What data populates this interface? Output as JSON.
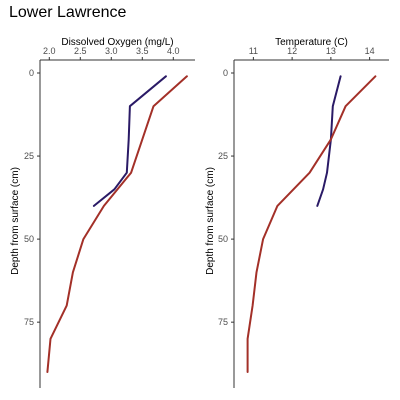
{
  "title": "Lower Lawrence",
  "colors": {
    "series_a": "#2a1a66",
    "series_b": "#a33028",
    "axis": "#333333",
    "tick_label": "#4d4d4d"
  },
  "chart_data": [
    {
      "type": "line",
      "xlabel": "Dissolved Oxygen (mg/L)",
      "ylabel": "Depth from surface (cm)",
      "xlim": [
        1.85,
        4.35
      ],
      "ylim": [
        0,
        93
      ],
      "y_reversed": true,
      "x_axis_position": "top",
      "xticks": [
        2.0,
        2.5,
        3.0,
        3.5,
        4.0
      ],
      "xtick_labels": [
        "2.0",
        "2.5",
        "3.0",
        "3.5",
        "4.0"
      ],
      "yticks": [
        0,
        25,
        50,
        75
      ],
      "ytick_labels": [
        "0",
        "25",
        "50",
        "75"
      ],
      "grid": false,
      "series": [
        {
          "color": "#2a1a66",
          "points": [
            [
              3.88,
              1
            ],
            [
              3.3,
              10
            ],
            [
              3.28,
              20
            ],
            [
              3.25,
              30
            ],
            [
              3.05,
              35
            ],
            [
              2.72,
              40
            ]
          ]
        },
        {
          "color": "#a33028",
          "points": [
            [
              4.22,
              1
            ],
            [
              3.68,
              10
            ],
            [
              3.5,
              20
            ],
            [
              3.32,
              30
            ],
            [
              2.88,
              40
            ],
            [
              2.55,
              50
            ],
            [
              2.38,
              60
            ],
            [
              2.28,
              70
            ],
            [
              2.02,
              80
            ],
            [
              1.97,
              90
            ]
          ]
        }
      ]
    },
    {
      "type": "line",
      "xlabel": "Temperature (C)",
      "ylabel": "Depth from surface (cm)",
      "xlim": [
        10.5,
        14.5
      ],
      "ylim": [
        0,
        93
      ],
      "y_reversed": true,
      "x_axis_position": "top",
      "xticks": [
        11,
        12,
        13,
        14
      ],
      "xtick_labels": [
        "11",
        "12",
        "13",
        "14"
      ],
      "yticks": [
        0,
        25,
        50,
        75
      ],
      "ytick_labels": [
        "0",
        "25",
        "50",
        "75"
      ],
      "grid": false,
      "series": [
        {
          "color": "#2a1a66",
          "points": [
            [
              13.25,
              1
            ],
            [
              13.05,
              10
            ],
            [
              13.0,
              20
            ],
            [
              12.9,
              30
            ],
            [
              12.8,
              35
            ],
            [
              12.65,
              40
            ]
          ]
        },
        {
          "color": "#a33028",
          "points": [
            [
              14.15,
              1
            ],
            [
              13.38,
              10
            ],
            [
              13.0,
              20
            ],
            [
              12.45,
              30
            ],
            [
              11.62,
              40
            ],
            [
              11.25,
              50
            ],
            [
              11.08,
              60
            ],
            [
              10.98,
              70
            ],
            [
              10.85,
              80
            ],
            [
              10.85,
              90
            ]
          ]
        }
      ]
    }
  ]
}
